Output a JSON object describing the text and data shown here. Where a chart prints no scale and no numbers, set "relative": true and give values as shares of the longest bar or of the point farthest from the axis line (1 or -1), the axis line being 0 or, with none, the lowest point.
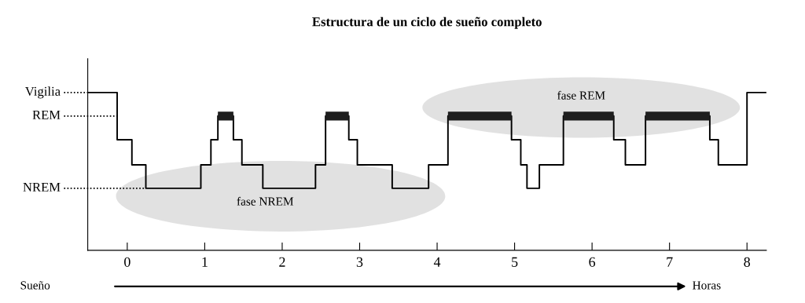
{
  "chart_data": {
    "type": "step",
    "title": "Estructura de un ciclo de sueño completo",
    "xlabel": "Horas",
    "relative": true,
    "annotations": [
      "Sueño",
      "fase NREM",
      "fase REM",
      {
        "text": "Vigilia",
        "x": -0.51,
        "y": 1
      },
      "REM",
      {
        "text": "NREM",
        "x": 0.24,
        "y": 0.393
      }
    ],
    "x": [
      -0.51,
      -0.13,
      0.06,
      0.24,
      0.95,
      1.08,
      1.17,
      1.37,
      1.48,
      1.75,
      2.43,
      2.56,
      2.86,
      2.97,
      3.42,
      3.89,
      4.14,
      4.96,
      5.08,
      5.16,
      5.32,
      5.63,
      6.28,
      6.43,
      6.69,
      7.52,
      7.63,
      8.0,
      8.25
    ],
    "series": [
      {
        "color": "#000000",
        "values": [
          1,
          0.701,
          0.542,
          0.393,
          0.542,
          0.701,
          0.851,
          0.701,
          0.542,
          0.393,
          0.542,
          0.851,
          0.701,
          0.542,
          0.393,
          0.542,
          0.851,
          0.701,
          0.542,
          0.393,
          0.542,
          0.851,
          0.701,
          0.542,
          0.851,
          0.701,
          0.542,
          1,
          1
        ]
      },
      {
        "color": "#1e1e1e",
        "x": [
          1.17,
          1.37,
          2.56,
          2.86,
          4.14,
          4.96,
          5.63,
          6.28,
          6.69,
          7.52
        ],
        "values": [
          0.851,
          null,
          0.851,
          null,
          0.851,
          null,
          0.851,
          null,
          0.851,
          0.851
        ]
      }
    ],
    "xlim": [
      -0.51,
      8.25
    ],
    "xticks": [
      0,
      1,
      2,
      3,
      4,
      5,
      6,
      7,
      8
    ],
    "tick_labels": "x",
    "grid": false,
    "legend": false
  }
}
